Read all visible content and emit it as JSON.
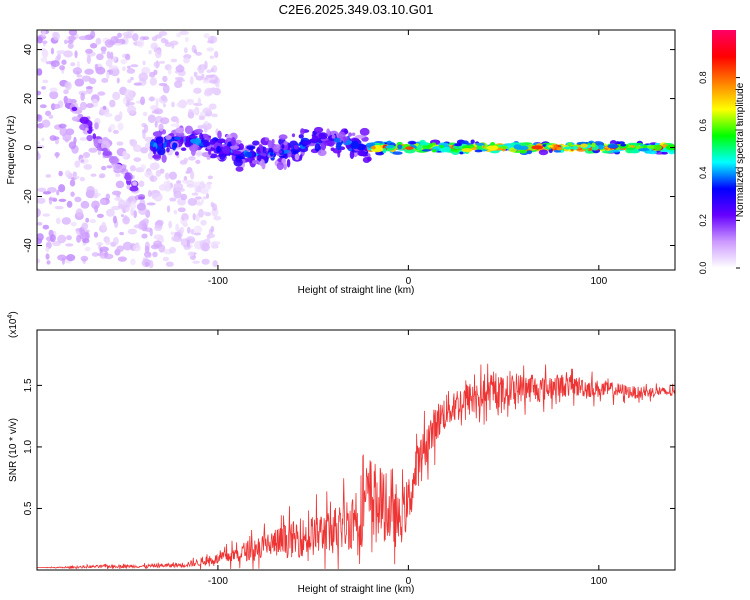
{
  "title": "C2E6.2025.349.03.10.G01",
  "chart_data": [
    {
      "type": "heatmap",
      "name": "spectrogram",
      "xlabel": "Height of straight line (km)",
      "ylabel": "Frequency (Hz)",
      "xlim": [
        -195,
        140
      ],
      "ylim": [
        -50,
        48
      ],
      "xticks": [
        -100,
        0,
        100
      ],
      "yticks": [
        -40,
        -20,
        0,
        20,
        40
      ],
      "grid": false,
      "colorbar": {
        "label": "Normalized spectral amplitude",
        "range": [
          0,
          1
        ],
        "ticks": [
          "0.0",
          "0.2",
          "0.4",
          "0.6",
          "0.8"
        ],
        "colors": [
          "#ffffff",
          "#cc99ff",
          "#6600ff",
          "#0000ff",
          "#00ffff",
          "#00ff00",
          "#ffff00",
          "#ff8000",
          "#ff0000",
          "#ff0066"
        ]
      },
      "bands": [
        {
          "x_range": [
            -195,
            -100
          ],
          "center_freq": 0,
          "half_width_hz": 48,
          "amplitude": 0.1,
          "note": "scattered low-amplitude noise"
        },
        {
          "x_range": [
            -180,
            -140
          ],
          "center_freq": 20,
          "half_width_hz": 5,
          "amplitude": 0.2,
          "note": "weak descending trace"
        },
        {
          "x_range": [
            -135,
            -20
          ],
          "center_freq": 0,
          "half_width_hz": 7,
          "amplitude": 0.35
        },
        {
          "x_range": [
            -20,
            140
          ],
          "center_freq": 0,
          "half_width_hz": 2.5,
          "amplitude": 0.9
        }
      ]
    },
    {
      "type": "line",
      "name": "snr",
      "xlabel": "Height of straight line (km)",
      "ylabel": "SNR (10 * v/v)",
      "y_multiplier_label": "(x10",
      "y_multiplier_exponent": "4",
      "y_multiplier_close": ")",
      "xlim": [
        -195,
        140
      ],
      "ylim": [
        0,
        1.95
      ],
      "xticks": [
        -100,
        0,
        100
      ],
      "yticks": [
        "0.5",
        "1.0",
        "1.5"
      ],
      "grid": false,
      "series": [
        {
          "name": "SNR",
          "color": "#ee3333",
          "x": [
            -195,
            -180,
            -160,
            -140,
            -120,
            -110,
            -100,
            -90,
            -80,
            -70,
            -60,
            -50,
            -40,
            -30,
            -25,
            -20,
            -15,
            -10,
            -5,
            0,
            5,
            10,
            15,
            20,
            30,
            40,
            50,
            60,
            70,
            80,
            90,
            100,
            110,
            120,
            130,
            140
          ],
          "y": [
            0.02,
            0.02,
            0.03,
            0.03,
            0.04,
            0.06,
            0.09,
            0.13,
            0.18,
            0.22,
            0.25,
            0.28,
            0.32,
            0.4,
            0.5,
            0.6,
            0.55,
            0.45,
            0.38,
            0.55,
            0.85,
            1.05,
            1.2,
            1.3,
            1.38,
            1.42,
            1.45,
            1.48,
            1.47,
            1.5,
            1.49,
            1.47,
            1.46,
            1.44,
            1.45,
            1.44
          ],
          "noise": [
            0.0,
            0.01,
            0.02,
            0.02,
            0.03,
            0.05,
            0.07,
            0.12,
            0.16,
            0.2,
            0.25,
            0.28,
            0.32,
            0.4,
            0.5,
            0.55,
            0.5,
            0.4,
            0.35,
            0.35,
            0.3,
            0.28,
            0.26,
            0.25,
            0.24,
            0.23,
            0.22,
            0.2,
            0.18,
            0.16,
            0.14,
            0.12,
            0.1,
            0.08,
            0.07,
            0.06
          ]
        }
      ]
    }
  ]
}
